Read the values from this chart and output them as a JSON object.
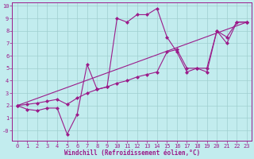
{
  "xlabel": "Windchill (Refroidissement éolien,°C)",
  "background_color": "#c2ecee",
  "line_color": "#9b1b8a",
  "xlim": [
    -0.5,
    23.5
  ],
  "ylim": [
    -0.8,
    10.3
  ],
  "xticks": [
    0,
    1,
    2,
    3,
    4,
    5,
    6,
    7,
    8,
    9,
    10,
    11,
    12,
    13,
    14,
    15,
    16,
    17,
    18,
    19,
    20,
    21,
    22,
    23
  ],
  "yticks": [
    0,
    1,
    2,
    3,
    4,
    5,
    6,
    7,
    8,
    9,
    10
  ],
  "series1_x": [
    0,
    1,
    2,
    3,
    4,
    5,
    6,
    7,
    8,
    9,
    10,
    11,
    12,
    13,
    14,
    15,
    16,
    17,
    18,
    19,
    20,
    21,
    22,
    23
  ],
  "series1_y": [
    2.0,
    1.7,
    1.6,
    1.8,
    1.8,
    -0.3,
    1.3,
    5.3,
    3.3,
    3.5,
    9.0,
    8.7,
    9.3,
    9.3,
    9.8,
    7.5,
    6.3,
    4.7,
    5.0,
    4.7,
    8.0,
    7.0,
    8.7,
    8.7
  ],
  "series2_x": [
    0,
    1,
    2,
    3,
    4,
    5,
    6,
    7,
    8,
    9,
    10,
    11,
    12,
    13,
    14,
    15,
    16,
    17,
    18,
    19,
    20,
    21,
    22,
    23
  ],
  "series2_y": [
    2.0,
    2.1,
    2.2,
    2.35,
    2.5,
    2.1,
    2.6,
    3.0,
    3.3,
    3.5,
    3.8,
    4.0,
    4.3,
    4.5,
    4.7,
    6.3,
    6.5,
    5.0,
    5.0,
    5.0,
    8.0,
    7.5,
    8.7,
    8.7
  ],
  "series3_x": [
    0,
    23
  ],
  "series3_y": [
    2.0,
    8.7
  ],
  "grid_color": "#9fcfcf",
  "grid_linewidth": 0.5,
  "marker": "D",
  "markersize": 2.5,
  "linewidth": 0.8,
  "tick_fontsize": 5,
  "xlabel_fontsize": 5.5
}
